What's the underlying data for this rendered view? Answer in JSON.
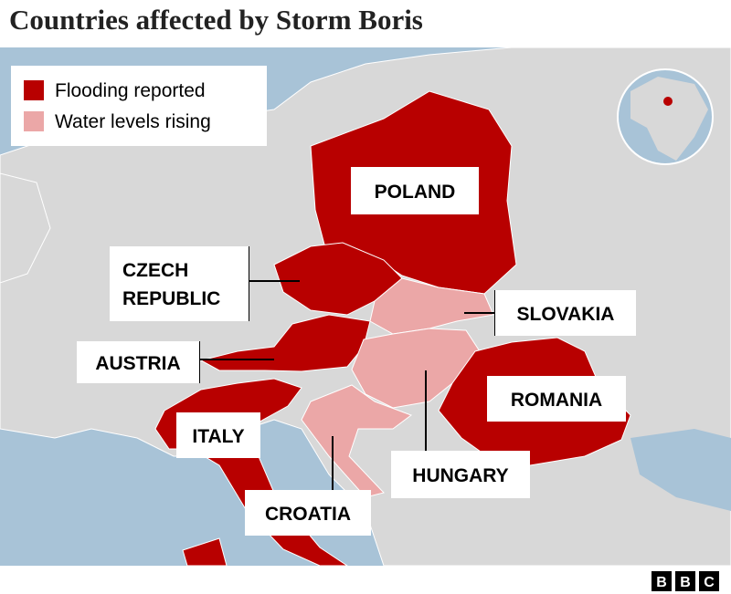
{
  "header": {
    "title": "Countries affected by Storm Boris"
  },
  "legend": {
    "items": [
      {
        "label": "Flooding reported",
        "color": "#b80000"
      },
      {
        "label": "Water levels rising",
        "color": "#eba7a7"
      }
    ]
  },
  "labels": {
    "poland": "POLAND",
    "czech_line1": "CZECH",
    "czech_line2": "REPUBLIC",
    "slovakia": "SLOVAKIA",
    "austria": "AUSTRIA",
    "romania": "ROMANIA",
    "italy": "ITALY",
    "hungary": "HUNGARY",
    "croatia": "CROATIA"
  },
  "footer": {
    "logo": [
      "B",
      "B",
      "C"
    ]
  }
}
